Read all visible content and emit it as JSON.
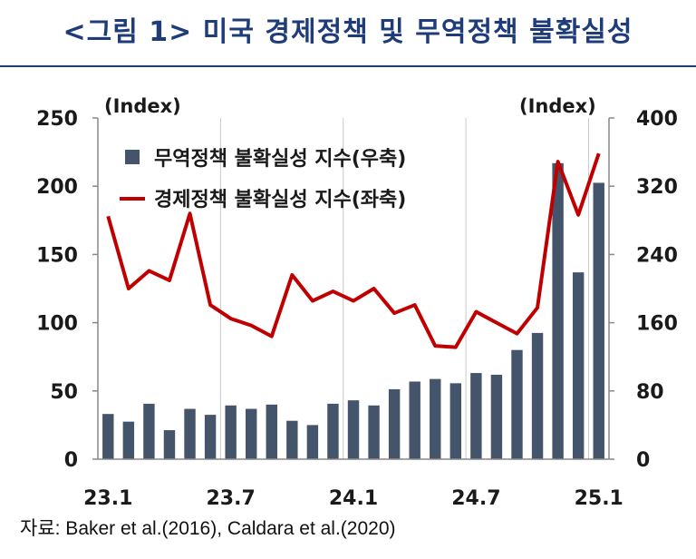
{
  "header": {
    "title": "<그림 1> 미국 경제정책 및 무역정책 불확실성"
  },
  "footer": {
    "source": "자료: Baker et al.(2016), Caldara et al.(2020)"
  },
  "colors": {
    "title": "#1f3c7a",
    "bar": "#44546a",
    "line": "#c00000",
    "grid": "#c8c8c8"
  },
  "chart_data": {
    "type": "bar+line",
    "left_axis": {
      "label": "(Index)",
      "ticks": [
        0,
        50,
        100,
        150,
        200,
        250
      ],
      "ylim": [
        0,
        250
      ]
    },
    "right_axis": {
      "label": "(Index)",
      "ticks": [
        0,
        80,
        160,
        240,
        320,
        400
      ],
      "ylim": [
        0,
        400
      ]
    },
    "x_tick_labels": [
      "23.1",
      "23.7",
      "24.1",
      "24.7",
      "25.1"
    ],
    "x_tick_index": [
      0,
      6,
      12,
      18,
      24
    ],
    "categories": [
      "23.1",
      "23.2",
      "23.3",
      "23.4",
      "23.5",
      "23.6",
      "23.7",
      "23.8",
      "23.9",
      "23.10",
      "23.11",
      "23.12",
      "24.1",
      "24.2",
      "24.3",
      "24.4",
      "24.5",
      "24.6",
      "24.7",
      "24.8",
      "24.9",
      "24.10",
      "24.11",
      "24.12",
      "25.1"
    ],
    "series": [
      {
        "name": "무역정책 불확실성 지수(우축)",
        "type": "bar",
        "axis": "right",
        "values": [
          53,
          44,
          65,
          34,
          59,
          52,
          63,
          59,
          64,
          45,
          40,
          65,
          69,
          63,
          82,
          91,
          94,
          89,
          101,
          99,
          128,
          148,
          347,
          219,
          324
        ]
      },
      {
        "name": "경제정책 불확실성 지수(좌축)",
        "type": "line",
        "axis": "left",
        "values": [
          178,
          125,
          138,
          131,
          180,
          113,
          103,
          98,
          90,
          135,
          116,
          123,
          116,
          125,
          107,
          113,
          83,
          82,
          108,
          100,
          92,
          111,
          218,
          179,
          224
        ]
      }
    ],
    "legend": {
      "position": "top-left"
    },
    "grid": {
      "vertical": true,
      "horizontal": false
    }
  }
}
